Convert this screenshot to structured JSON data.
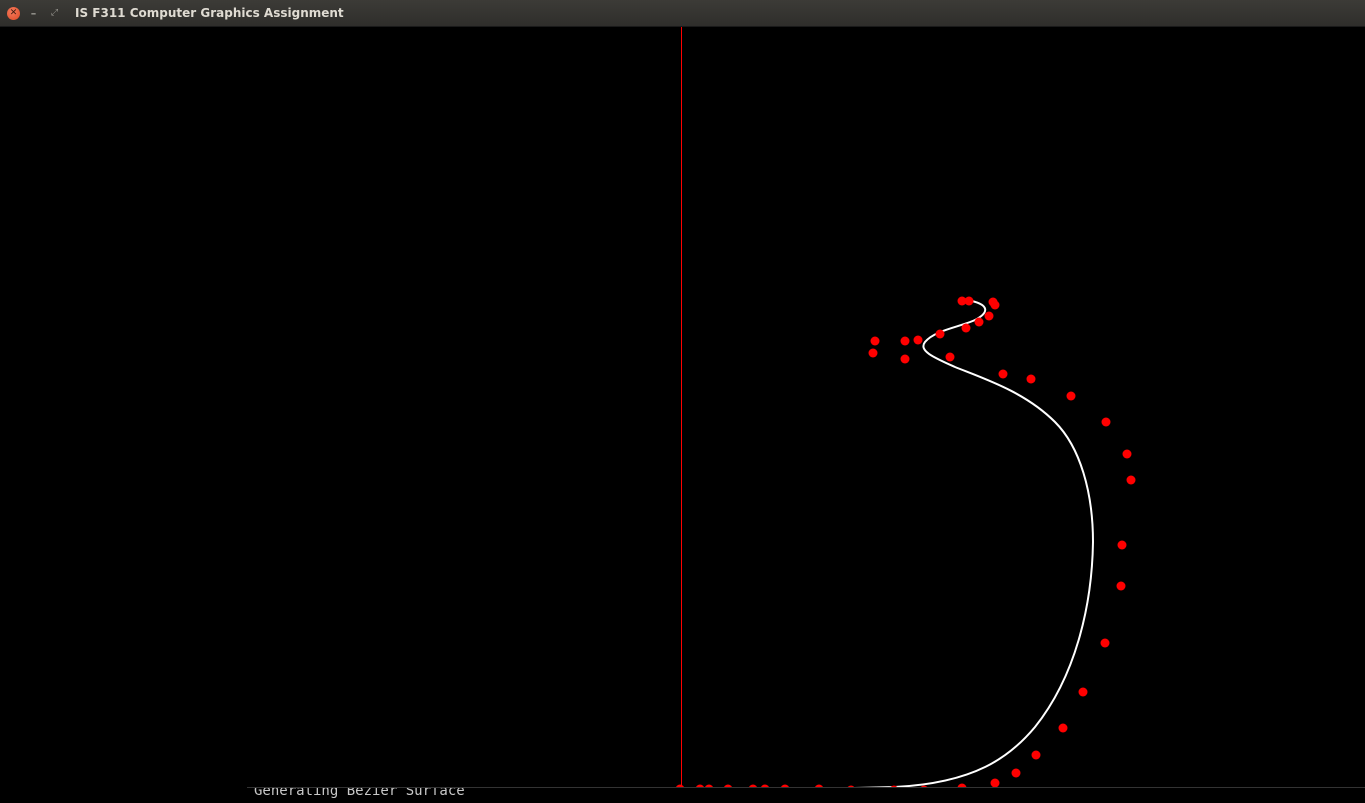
{
  "window": {
    "title": "IS F311 Computer Graphics Assignment",
    "close_glyph": "✕",
    "minimize_glyph": "–",
    "maximize_glyph": "⤢",
    "buttons": [
      "close-icon",
      "minimize-icon",
      "maximize-icon"
    ]
  },
  "canvas": {
    "background": "#000000",
    "axis_color": "#ff0000",
    "curve_color": "#ffffff",
    "point_color": "#ff0000"
  },
  "console": {
    "text": "Generating Bezier Surface"
  }
}
